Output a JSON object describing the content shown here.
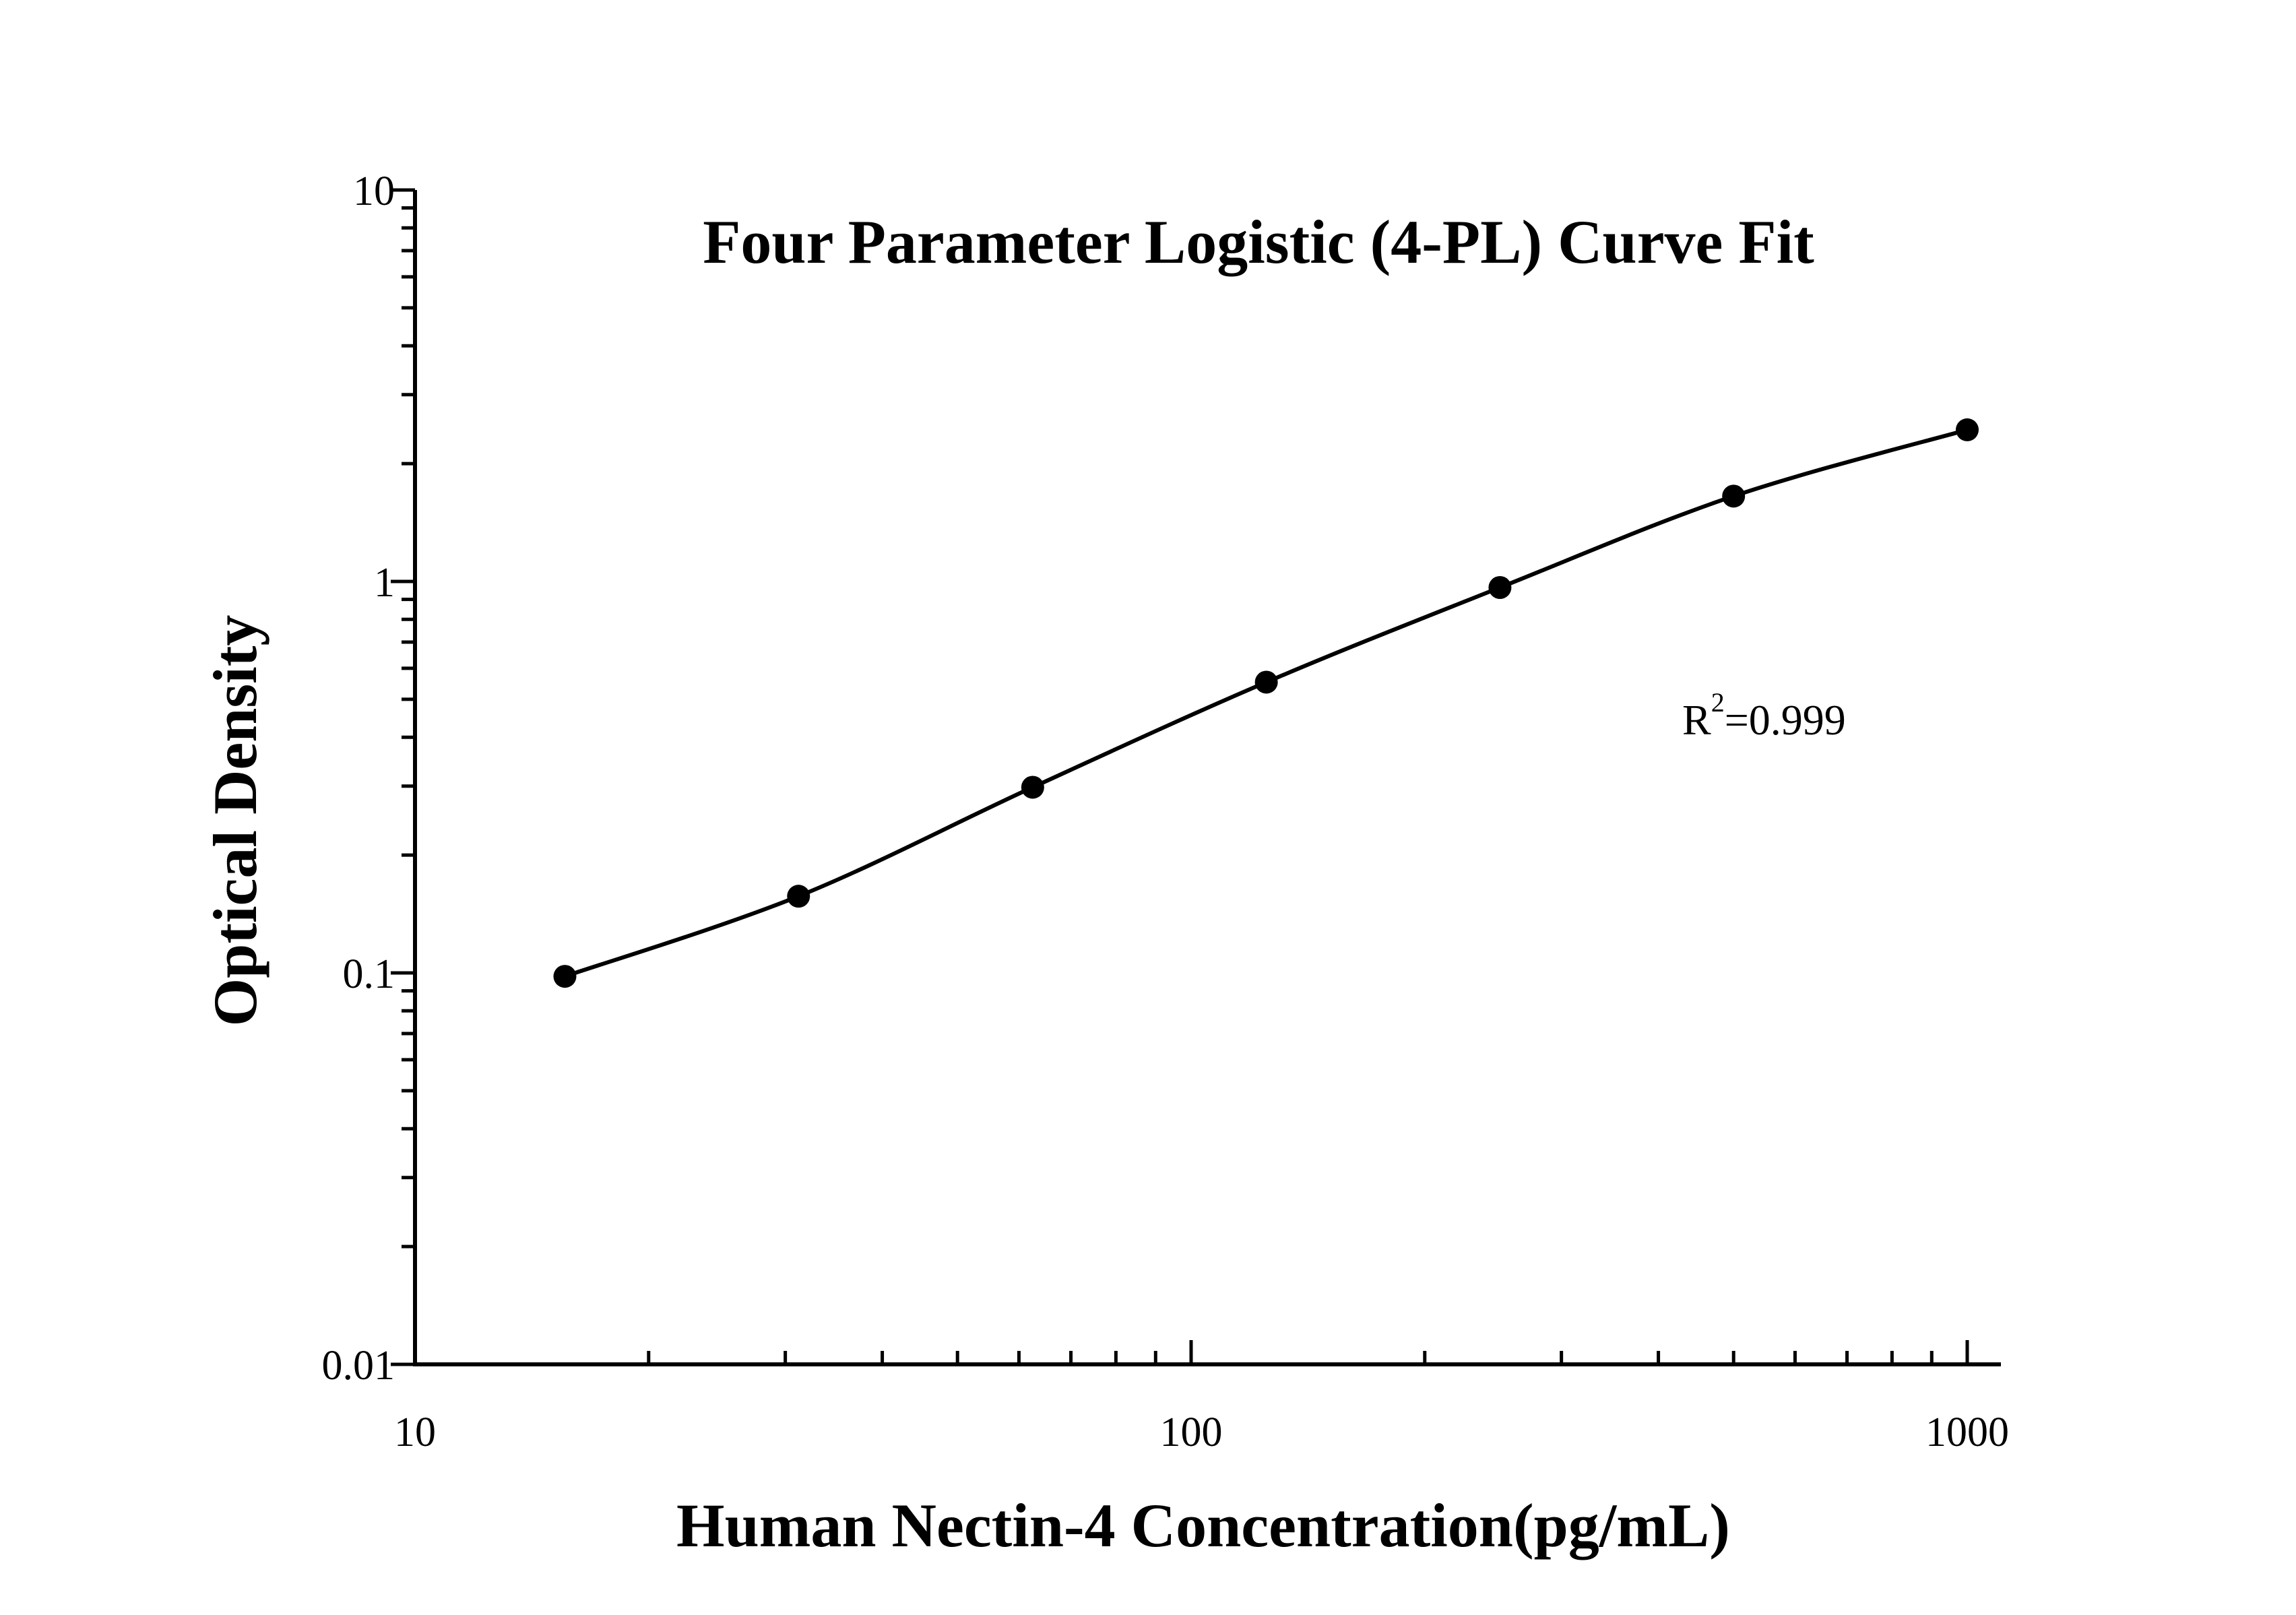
{
  "chart_data": {
    "type": "scatter",
    "title": "Four Parameter Logistic (4-PL) Curve Fit",
    "xlabel": "Human Nectin-4 Concentration(pg/mL)",
    "ylabel": "Optical Density",
    "x_scale": "log",
    "y_scale": "log",
    "xlim": [
      10,
      1000
    ],
    "ylim": [
      0.01,
      10
    ],
    "x_ticks": [
      "10",
      "100",
      "1000"
    ],
    "y_ticks": [
      "0.01",
      "0.1",
      "1",
      "10"
    ],
    "grid": false,
    "legend": "none",
    "annotation": {
      "base": "R",
      "sup": "2",
      "rest": "=0.999"
    },
    "series": [
      {
        "x": [
          15.6,
          31.2,
          62.5,
          125,
          250,
          500,
          1000
        ],
        "y": [
          0.098,
          0.157,
          0.298,
          0.553,
          0.965,
          1.652,
          2.44
        ]
      }
    ],
    "marker_color": "#000000",
    "line_color": "#000000"
  }
}
